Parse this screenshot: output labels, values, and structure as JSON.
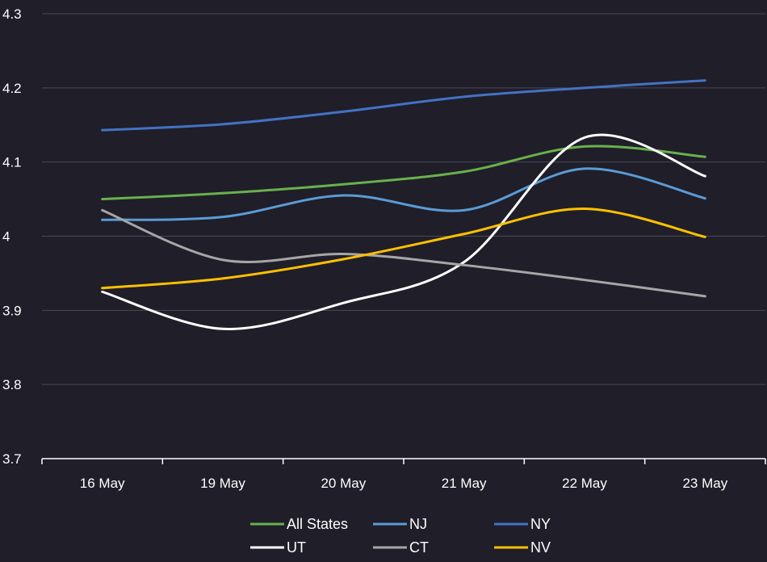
{
  "chart_data": {
    "type": "line",
    "title": "",
    "xlabel": "",
    "ylabel": "",
    "categories": [
      "16 May",
      "19 May",
      "20 May",
      "21 May",
      "22 May",
      "23 May"
    ],
    "ylim": [
      3.7,
      4.3
    ],
    "yticks": [
      "3.7",
      "3.8",
      "3.9",
      "4",
      "4.1",
      "4.2",
      "4.3"
    ],
    "grid": true,
    "legend_position": "bottom",
    "smooth": true,
    "series": [
      {
        "name": "All States",
        "color": "#6ab04c",
        "values": [
          4.05,
          4.058,
          4.07,
          4.087,
          4.121,
          4.107
        ]
      },
      {
        "name": "NJ",
        "color": "#5b9bd5",
        "values": [
          4.022,
          4.026,
          4.055,
          4.035,
          4.091,
          4.051
        ]
      },
      {
        "name": "NY",
        "color": "#4472c4",
        "values": [
          4.143,
          4.151,
          4.168,
          4.188,
          4.2,
          4.21
        ]
      },
      {
        "name": "UT",
        "color": "#ffffff",
        "values": [
          3.925,
          3.875,
          3.91,
          3.965,
          4.133,
          4.081
        ]
      },
      {
        "name": "CT",
        "color": "#a6a6a6",
        "values": [
          4.035,
          3.968,
          3.976,
          3.961,
          3.941,
          3.919
        ]
      },
      {
        "name": "NV",
        "color": "#ffc000",
        "values": [
          3.93,
          3.943,
          3.969,
          4.003,
          4.037,
          3.999
        ]
      }
    ]
  }
}
